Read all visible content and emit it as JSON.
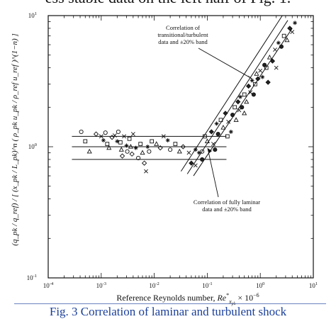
{
  "page": {
    "top_text": "ess stable data on the left half of Fig. 1.",
    "caption": "Fig. 3 Correlation of laminar and turbulent shock"
  },
  "chart_data": {
    "type": "scatter",
    "title": "",
    "xlabel": "Reference Reynolds number, Re*x,pk × 10^-6",
    "xlabel_parts": {
      "main": "Reference Reynolds number, ",
      "re": "Re",
      "re_sup": "*",
      "re_sub": "x",
      "re_subsub": "pk",
      "tail": " × 10",
      "tail_sup": "−6"
    },
    "ylabel": "(q_pk / q_ref) / [ (x_pk / L_pk)^n ( ρ_pk u_pk / ρ_ref u_ref )^(1−n) ]",
    "x_scale": "log",
    "y_scale": "log",
    "xlim": [
      0.0001,
      10
    ],
    "ylim": [
      0.1,
      10
    ],
    "x_ticks": [
      {
        "base": "10",
        "exp": "-4",
        "value": 0.0001
      },
      {
        "base": "10",
        "exp": "-3",
        "value": 0.001
      },
      {
        "base": "10",
        "exp": "-2",
        "value": 0.01
      },
      {
        "base": "10",
        "exp": "-1",
        "value": 0.1
      },
      {
        "base": "10",
        "exp": "0",
        "value": 1
      },
      {
        "base": "10",
        "exp": "1",
        "value": 10
      }
    ],
    "y_ticks": [
      {
        "base": "10",
        "exp": "-1",
        "value": 0.1
      },
      {
        "base": "10",
        "exp": "0",
        "value": 1
      },
      {
        "base": "10",
        "exp": "1",
        "value": 10
      }
    ],
    "annotations": [
      {
        "lines": [
          "Correlation of",
          "transitional/turbulent",
          "data and ±20% band"
        ],
        "arrow_to": [
          0.7,
          3.3
        ]
      },
      {
        "lines": [
          "Correlation of fully laminar",
          "data and ±20% band"
        ],
        "arrow_to": [
          0.055,
          1.0
        ]
      }
    ],
    "laminar_band": {
      "x_range": [
        0.00028,
        0.23
      ],
      "y": [
        0.8,
        1.0,
        1.2
      ]
    },
    "turbulent_band": {
      "lower": [
        [
          0.055,
          0.6
        ],
        [
          4.0,
          8.0
        ]
      ],
      "center": [
        [
          0.042,
          0.62
        ],
        [
          3.3,
          9.2
        ]
      ],
      "upper": [
        [
          0.032,
          0.65
        ],
        [
          2.6,
          10.0
        ]
      ]
    },
    "series": [
      {
        "group": "laminar",
        "points": [
          [
            0.00042,
            1.3
          ],
          [
            0.0005,
            1.1
          ],
          [
            0.0006,
            0.92
          ],
          [
            0.0008,
            1.25
          ],
          [
            0.001,
            1.2
          ],
          [
            0.0011,
            1.12
          ],
          [
            0.0012,
            1.28
          ],
          [
            0.0013,
            1.05
          ],
          [
            0.0014,
            0.98
          ],
          [
            0.0016,
            1.18
          ],
          [
            0.0018,
            1.22
          ],
          [
            0.002,
            1.1
          ],
          [
            0.0021,
            1.3
          ],
          [
            0.0023,
            1.08
          ],
          [
            0.0024,
            0.95
          ],
          [
            0.0025,
            0.85
          ],
          [
            0.0027,
            1.2
          ],
          [
            0.003,
            1.02
          ],
          [
            0.0031,
            0.92
          ],
          [
            0.0034,
            1.15
          ],
          [
            0.0036,
            1.0
          ],
          [
            0.0038,
            0.88
          ],
          [
            0.004,
            1.25
          ],
          [
            0.0045,
            0.98
          ],
          [
            0.005,
            0.82
          ],
          [
            0.0055,
            1.05
          ],
          [
            0.006,
            0.9
          ],
          [
            0.0065,
            0.75
          ],
          [
            0.007,
            0.65
          ],
          [
            0.0075,
            1.0
          ],
          [
            0.008,
            0.92
          ],
          [
            0.009,
            1.1
          ],
          [
            0.011,
            1.05
          ],
          [
            0.013,
            0.98
          ],
          [
            0.015,
            1.2
          ],
          [
            0.018,
            1.12
          ],
          [
            0.02,
            0.95
          ],
          [
            0.025,
            1.05
          ],
          [
            0.03,
            0.92
          ],
          [
            0.035,
            1.0
          ],
          [
            0.045,
            0.9
          ],
          [
            0.06,
            0.95
          ],
          [
            0.08,
            0.92
          ]
        ]
      },
      {
        "group": "transitional/turbulent",
        "points": [
          [
            0.05,
            0.75
          ],
          [
            0.06,
            0.72
          ],
          [
            0.07,
            0.9
          ],
          [
            0.08,
            0.8
          ],
          [
            0.09,
            1.2
          ],
          [
            0.1,
            1.1
          ],
          [
            0.12,
            1.3
          ],
          [
            0.13,
            1.05
          ],
          [
            0.15,
            1.5
          ],
          [
            0.16,
            1.25
          ],
          [
            0.18,
            1.6
          ],
          [
            0.2,
            1.4
          ],
          [
            0.22,
            1.8
          ],
          [
            0.25,
            1.55
          ],
          [
            0.28,
            1.3
          ],
          [
            0.3,
            1.75
          ],
          [
            0.33,
            2.0
          ],
          [
            0.35,
            1.6
          ],
          [
            0.38,
            2.2
          ],
          [
            0.4,
            1.9
          ],
          [
            0.42,
            2.4
          ],
          [
            0.45,
            2.0
          ],
          [
            0.5,
            2.5
          ],
          [
            0.55,
            2.2
          ],
          [
            0.6,
            2.9
          ],
          [
            0.65,
            2.6
          ],
          [
            0.7,
            3.2
          ],
          [
            0.75,
            2.5
          ],
          [
            0.8,
            3.0
          ],
          [
            0.85,
            3.6
          ],
          [
            0.9,
            3.3
          ],
          [
            1.0,
            3.8
          ],
          [
            1.1,
            3.4
          ],
          [
            1.2,
            4.2
          ],
          [
            1.3,
            4.0
          ],
          [
            1.5,
            4.8
          ],
          [
            1.7,
            4.5
          ],
          [
            1.9,
            5.5
          ],
          [
            2.2,
            6.2
          ],
          [
            2.5,
            5.8
          ],
          [
            2.8,
            7.0
          ],
          [
            3.2,
            6.5
          ],
          [
            3.6,
            8.0
          ],
          [
            4.0,
            7.5
          ],
          [
            4.5,
            8.8
          ],
          [
            0.14,
            0.95
          ],
          [
            0.24,
            1.2
          ],
          [
            0.5,
            1.8
          ],
          [
            1.4,
            3.1
          ],
          [
            2.0,
            4.0
          ]
        ]
      }
    ]
  }
}
